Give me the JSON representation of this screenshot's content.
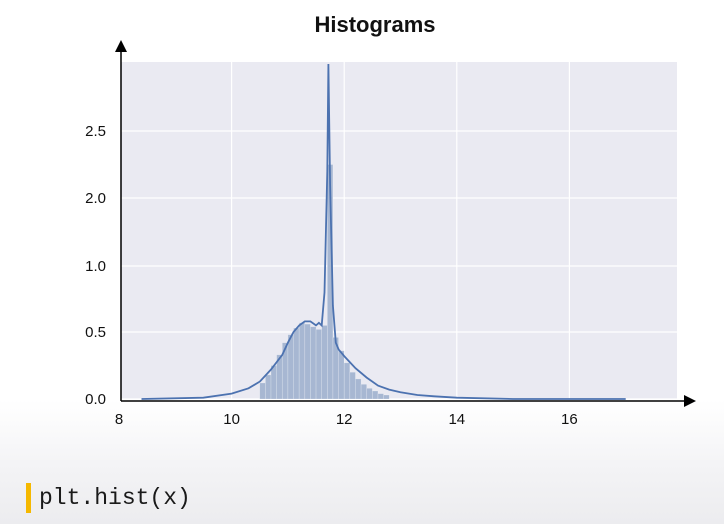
{
  "slide": {
    "code_snippet": "plt.hist(x)",
    "accent_color": "#f5b800"
  },
  "chart_data": {
    "type": "bar",
    "title": "Histograms",
    "xlabel": "",
    "ylabel": "",
    "x_ticks": [
      8,
      10,
      12,
      14,
      16
    ],
    "y_ticks": [
      "0.0",
      "0.5",
      "1.0",
      "2.0",
      "2.5"
    ],
    "xlim": [
      8,
      18
    ],
    "grid": true,
    "background_color": "#eaeaf2",
    "bar_color": "#a7b7d2",
    "line_color": "#4c72b0",
    "histogram": {
      "bin_width": 0.1,
      "bins": [
        {
          "x": 10.5,
          "y": 0.12
        },
        {
          "x": 10.6,
          "y": 0.18
        },
        {
          "x": 10.7,
          "y": 0.25
        },
        {
          "x": 10.8,
          "y": 0.33
        },
        {
          "x": 10.9,
          "y": 0.42
        },
        {
          "x": 11.0,
          "y": 0.48
        },
        {
          "x": 11.1,
          "y": 0.53
        },
        {
          "x": 11.2,
          "y": 0.57
        },
        {
          "x": 11.3,
          "y": 0.56
        },
        {
          "x": 11.4,
          "y": 0.54
        },
        {
          "x": 11.5,
          "y": 0.52
        },
        {
          "x": 11.6,
          "y": 0.55
        },
        {
          "x": 11.7,
          "y": 2.25
        },
        {
          "x": 11.8,
          "y": 0.46
        },
        {
          "x": 11.9,
          "y": 0.36
        },
        {
          "x": 12.0,
          "y": 0.27
        },
        {
          "x": 12.1,
          "y": 0.2
        },
        {
          "x": 12.2,
          "y": 0.15
        },
        {
          "x": 12.3,
          "y": 0.11
        },
        {
          "x": 12.4,
          "y": 0.08
        },
        {
          "x": 12.5,
          "y": 0.06
        },
        {
          "x": 12.6,
          "y": 0.04
        },
        {
          "x": 12.7,
          "y": 0.03
        }
      ]
    },
    "density_curve": {
      "x": [
        8.4,
        9.5,
        10.0,
        10.3,
        10.5,
        10.7,
        10.9,
        11.0,
        11.1,
        11.2,
        11.3,
        11.4,
        11.5,
        11.55,
        11.6,
        11.65,
        11.7,
        11.72,
        11.75,
        11.8,
        11.85,
        11.9,
        12.0,
        12.2,
        12.4,
        12.6,
        12.8,
        13.0,
        13.3,
        13.6,
        14.0,
        15.0,
        17.0
      ],
      "y": [
        0.0,
        0.01,
        0.04,
        0.08,
        0.13,
        0.22,
        0.33,
        0.42,
        0.5,
        0.55,
        0.58,
        0.58,
        0.55,
        0.57,
        0.55,
        0.8,
        2.2,
        3.0,
        2.1,
        0.7,
        0.42,
        0.37,
        0.32,
        0.23,
        0.16,
        0.1,
        0.07,
        0.05,
        0.03,
        0.02,
        0.01,
        0.0,
        0.0
      ]
    }
  }
}
